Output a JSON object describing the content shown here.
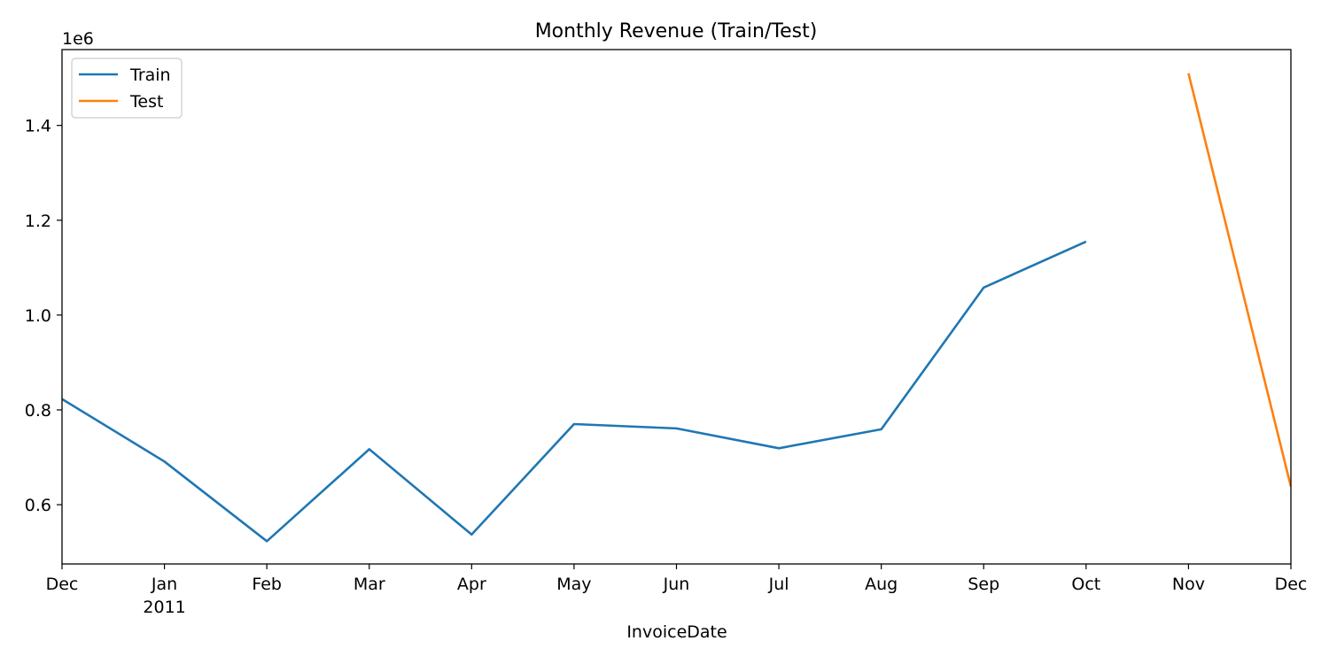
{
  "chart_data": {
    "type": "line",
    "title": "Monthly Revenue (Train/Test)",
    "xlabel": "InvoiceDate",
    "ylabel": "",
    "y_offset_label": "1e6",
    "y_multiplier": 1000000,
    "ylim": [
      475000,
      1560000
    ],
    "xlim": [
      "2010-12",
      "2011-12"
    ],
    "x_ticks": [
      "2010-12",
      "2011-01",
      "2011-02",
      "2011-03",
      "2011-04",
      "2011-05",
      "2011-06",
      "2011-07",
      "2011-08",
      "2011-09",
      "2011-10",
      "2011-11",
      "2011-12"
    ],
    "x_tick_labels": [
      "Dec",
      "Jan",
      "Feb",
      "Mar",
      "Apr",
      "May",
      "Jun",
      "Jul",
      "Aug",
      "Sep",
      "Oct",
      "Nov",
      "Dec"
    ],
    "x_tick_sublabels": [
      "",
      "2011",
      "",
      "",
      "",
      "",
      "",
      "",
      "",
      "",
      "",
      "",
      ""
    ],
    "y_ticks": [
      600000,
      800000,
      1000000,
      1200000,
      1400000
    ],
    "y_tick_labels": [
      "0.6",
      "0.8",
      "1.0",
      "1.2",
      "1.4"
    ],
    "grid": false,
    "legend_position": "top-left",
    "series": [
      {
        "name": "Train",
        "color": "#1f77b4",
        "x": [
          "2010-12",
          "2011-01",
          "2011-02",
          "2011-03",
          "2011-04",
          "2011-05",
          "2011-06",
          "2011-07",
          "2011-08",
          "2011-09",
          "2011-10"
        ],
        "values": [
          823000,
          691000,
          523000,
          717000,
          537000,
          770000,
          761000,
          719000,
          759000,
          1058000,
          1155000
        ]
      },
      {
        "name": "Test",
        "color": "#ff7f0e",
        "x": [
          "2011-11",
          "2011-12"
        ],
        "values": [
          1510000,
          638000
        ]
      }
    ]
  }
}
